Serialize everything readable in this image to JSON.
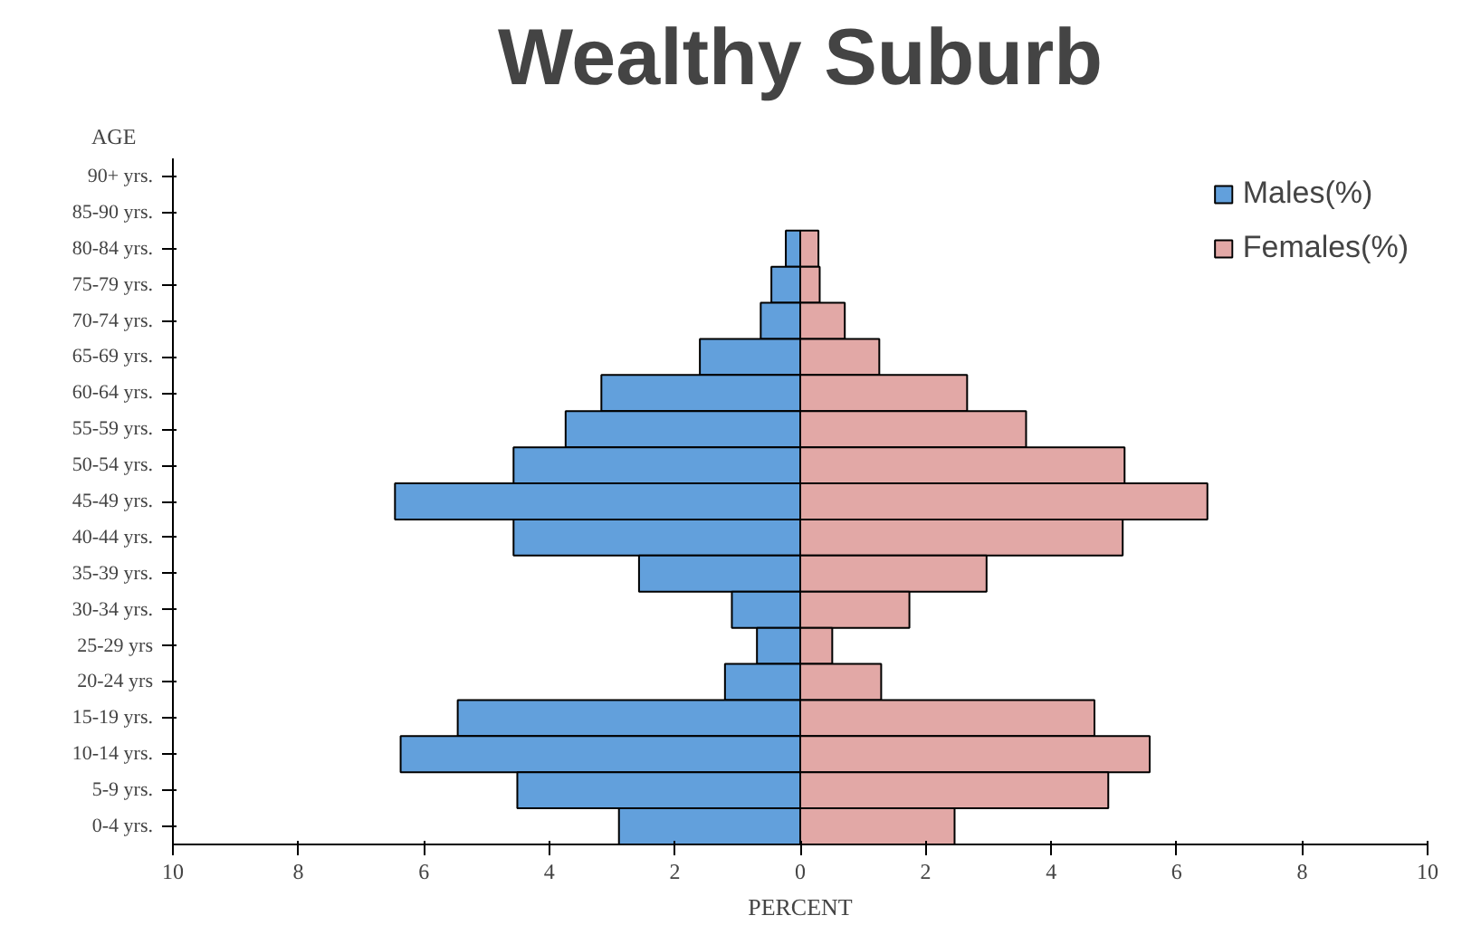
{
  "chart_data": {
    "type": "bar",
    "orientation": "horizontal",
    "stacked": true,
    "title": "Wealthy Suburb",
    "xlabel": "PERCENT",
    "ylabel": "AGE",
    "categories": [
      "90+ yrs.",
      "85-90 yrs.",
      "80-84 yrs.",
      "75-79 yrs.",
      "70-74 yrs.",
      "65-69 yrs.",
      "60-64 yrs.",
      "55-59 yrs.",
      "50-54 yrs.",
      "45-49 yrs.",
      "40-44 yrs.",
      "35-39 yrs.",
      "30-34 yrs.",
      "25-29 yrs",
      "20-24 yrs",
      "15-19 yrs.",
      "10-14 yrs.",
      "5-9 yrs.",
      "0-4 yrs."
    ],
    "series": [
      {
        "name": "Males(%)",
        "color": "#62a0dc",
        "values": [
          null,
          null,
          -0.23,
          -0.46,
          -0.63,
          -1.6,
          -3.17,
          -3.74,
          -4.57,
          -6.46,
          -4.57,
          -2.57,
          -1.09,
          -0.69,
          -1.2,
          -5.46,
          -6.37,
          -4.51,
          -2.89
        ]
      },
      {
        "name": "Females(%)",
        "color": "#e2a8a6",
        "values": [
          null,
          null,
          0.29,
          0.31,
          0.71,
          1.26,
          2.66,
          3.6,
          5.17,
          6.49,
          5.14,
          2.97,
          1.74,
          0.51,
          1.29,
          4.69,
          5.57,
          4.91,
          2.46
        ]
      }
    ],
    "xlim": [
      -10,
      10
    ],
    "xticks": [
      {
        "value": -10,
        "label": "10"
      },
      {
        "value": -8,
        "label": "8"
      },
      {
        "value": -6,
        "label": "6"
      },
      {
        "value": -4,
        "label": "4"
      },
      {
        "value": -2,
        "label": "2"
      },
      0,
      2,
      4,
      6,
      8,
      10
    ],
    "grid": false,
    "legend": "top right"
  }
}
